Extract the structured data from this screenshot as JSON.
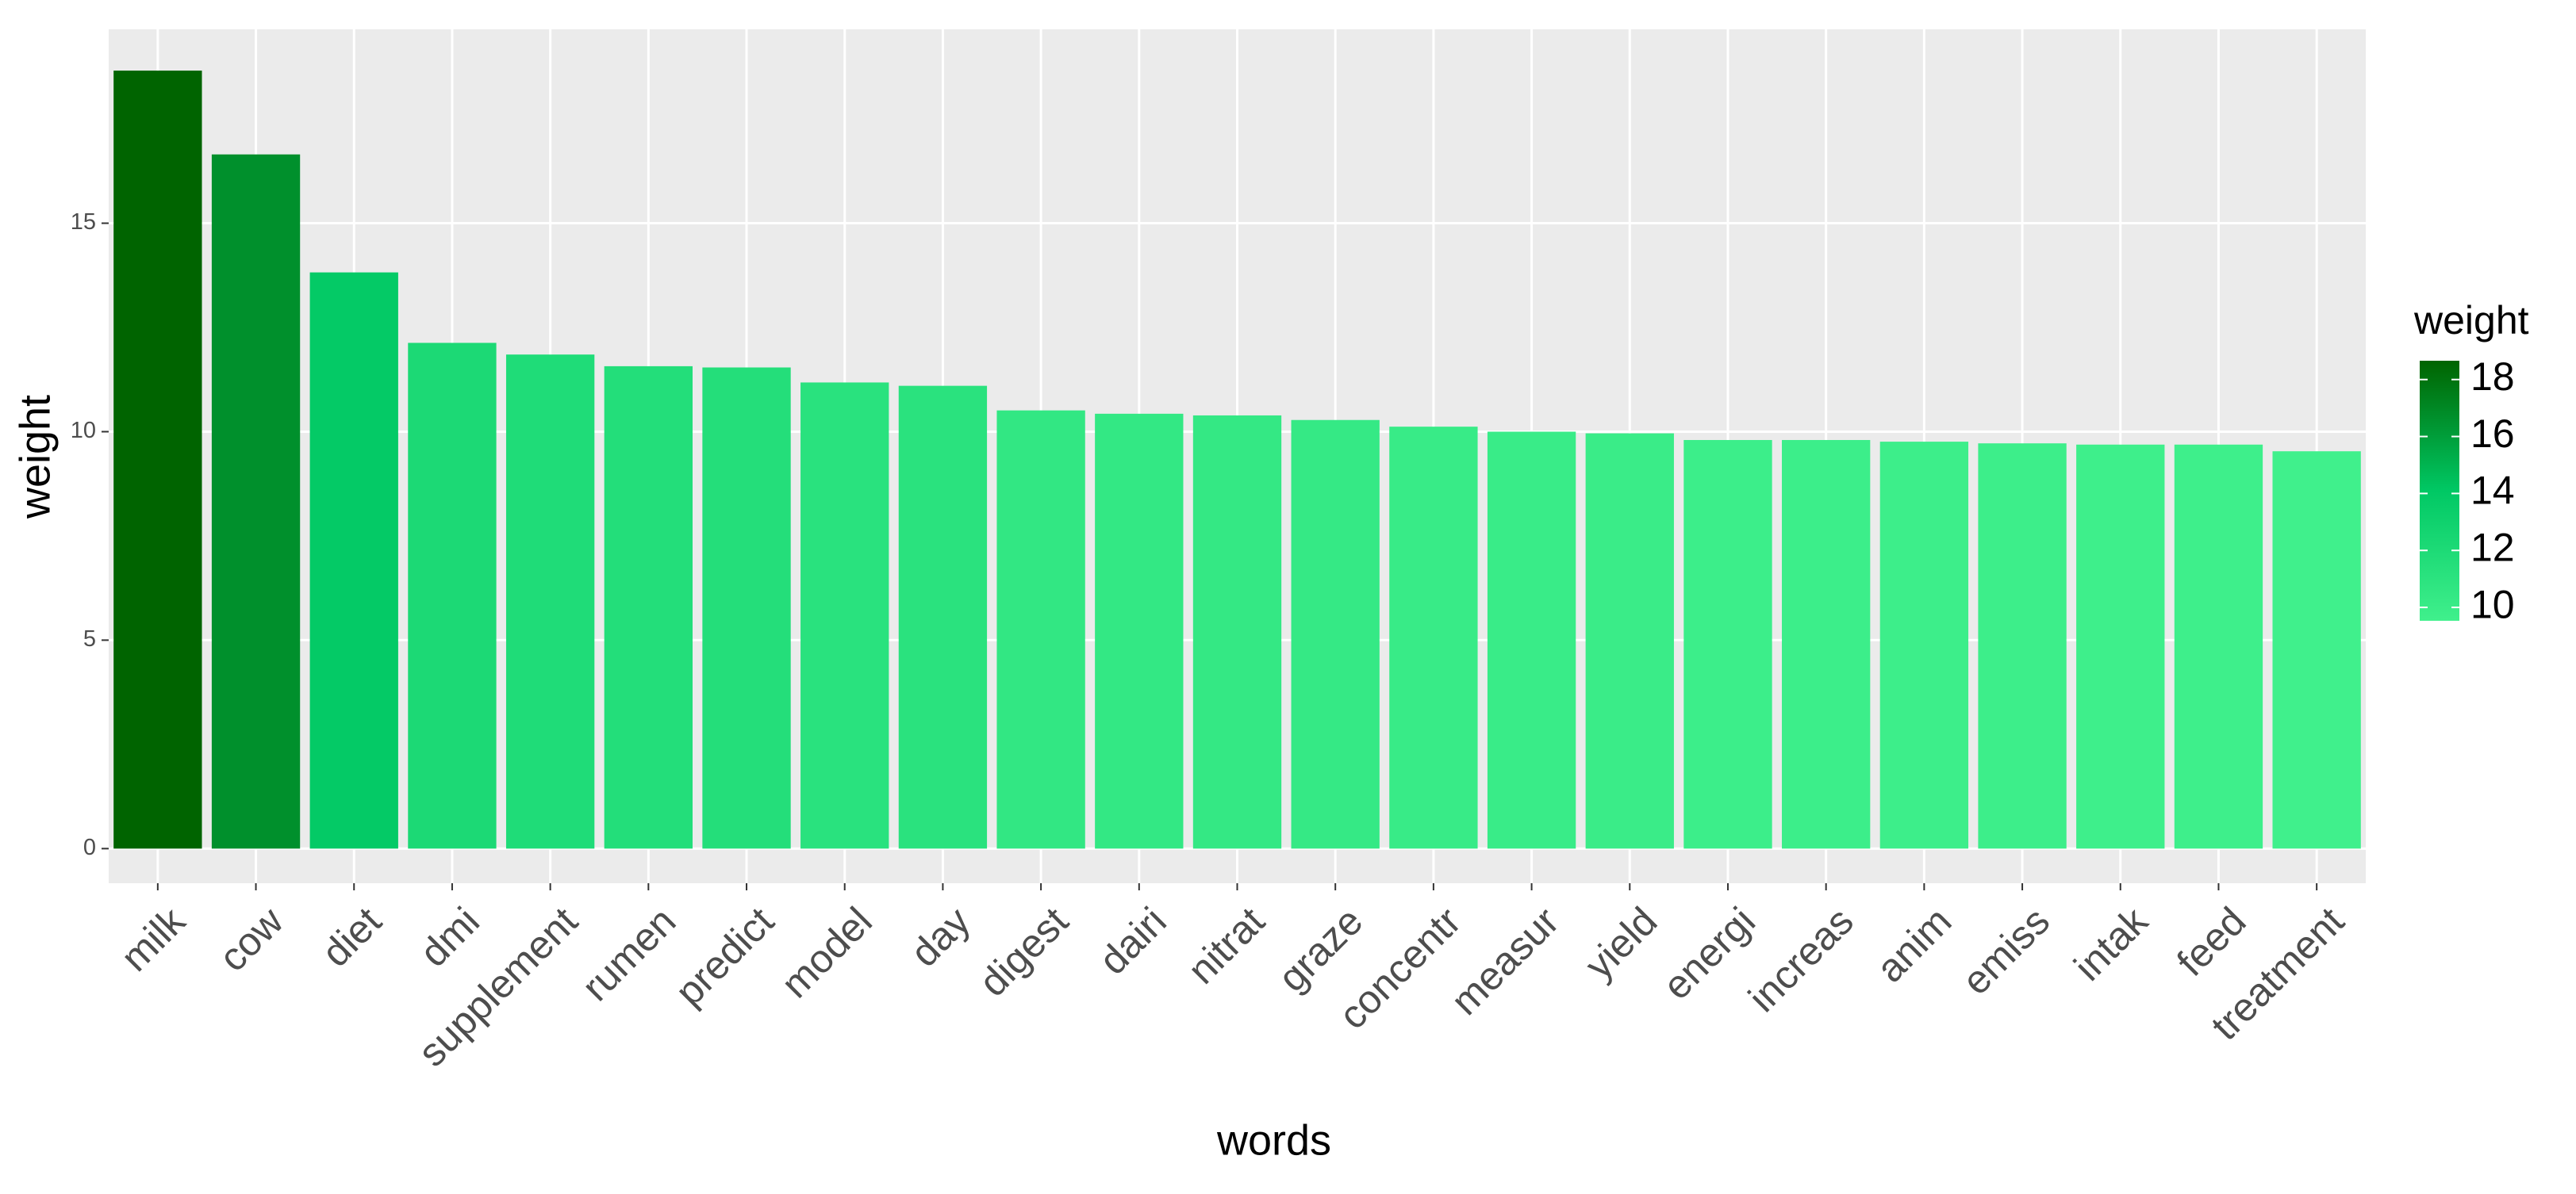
{
  "chart_data": {
    "type": "bar",
    "x_label": "words",
    "y_label": "weight",
    "categories": [
      "milk",
      "cow",
      "diet",
      "dmi",
      "supplement",
      "rumen",
      "predict",
      "model",
      "day",
      "digest",
      "dairi",
      "nitrat",
      "graze",
      "concentr",
      "measur",
      "yield",
      "energi",
      "increas",
      "anim",
      "emiss",
      "intak",
      "feed",
      "treatment"
    ],
    "values": [
      18.66,
      16.65,
      13.82,
      12.13,
      11.85,
      11.57,
      11.54,
      11.18,
      11.1,
      10.51,
      10.43,
      10.39,
      10.28,
      10.12,
      10.0,
      9.96,
      9.8,
      9.8,
      9.76,
      9.72,
      9.69,
      9.69,
      9.53
    ],
    "ylim": [
      -0.83,
      19.65
    ],
    "yticks": [
      0,
      5,
      10,
      15
    ],
    "grid": true,
    "color_scale": [
      "#40f08c",
      "#00c864",
      "#006400"
    ],
    "legend": {
      "title": "weight",
      "position": "right",
      "ticks": [
        10,
        12,
        14,
        16,
        18
      ]
    }
  }
}
